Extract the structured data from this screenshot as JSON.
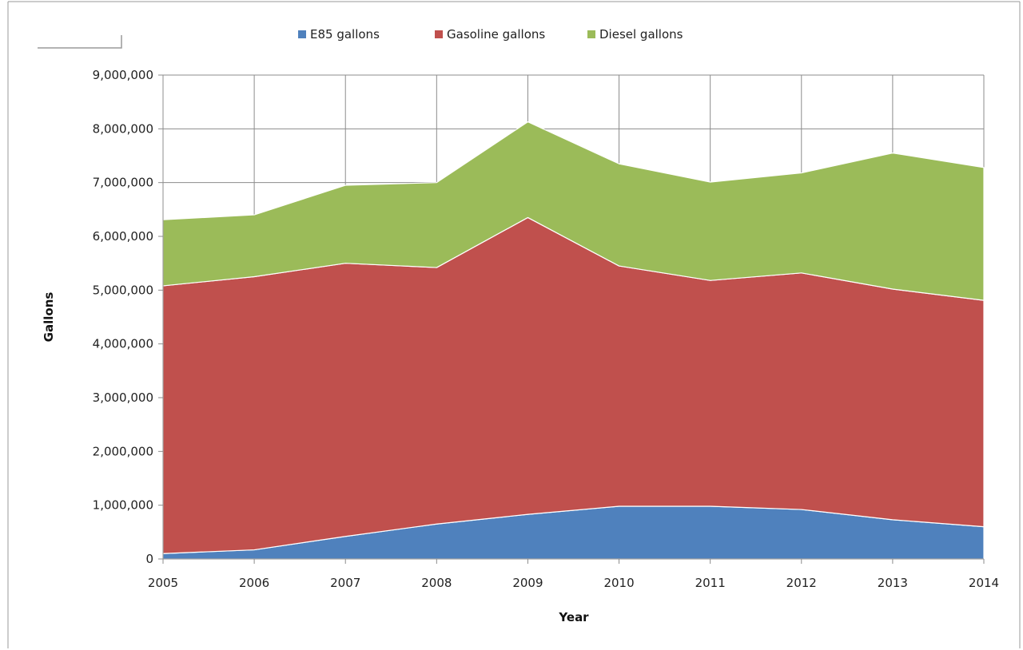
{
  "chart_data": {
    "type": "area",
    "stacked": true,
    "x": [
      2005,
      2006,
      2007,
      2008,
      2009,
      2010,
      2011,
      2012,
      2013,
      2014
    ],
    "series": [
      {
        "name": "E85 gallons",
        "color": "#4f81bd",
        "values": [
          100000,
          170000,
          420000,
          650000,
          830000,
          980000,
          980000,
          920000,
          730000,
          600000
        ]
      },
      {
        "name": "Gasoline gallons",
        "color": "#c0504d",
        "values": [
          4980000,
          5080000,
          5080000,
          4770000,
          5520000,
          4470000,
          4200000,
          4400000,
          4290000,
          4210000
        ]
      },
      {
        "name": "Diesel gallons",
        "color": "#9bbb59",
        "values": [
          1230000,
          1150000,
          1450000,
          1580000,
          1780000,
          1900000,
          1830000,
          1860000,
          2530000,
          2470000
        ]
      }
    ],
    "xlabel": "Year",
    "ylabel": "Gallons",
    "ylim": [
      0,
      9000000
    ],
    "y_ticks": [
      "0",
      "1,000,000",
      "2,000,000",
      "3,000,000",
      "4,000,000",
      "5,000,000",
      "6,000,000",
      "7,000,000",
      "8,000,000",
      "9,000,000"
    ],
    "x_ticks": [
      "2005",
      "2006",
      "2007",
      "2008",
      "2009",
      "2010",
      "2011",
      "2012",
      "2013",
      "2014"
    ],
    "grid": true,
    "legend_position": "top-center",
    "colors": {
      "grid": "#8c8c8c",
      "axis": "#8c8c8c",
      "frame": "#9a9a9a"
    }
  }
}
